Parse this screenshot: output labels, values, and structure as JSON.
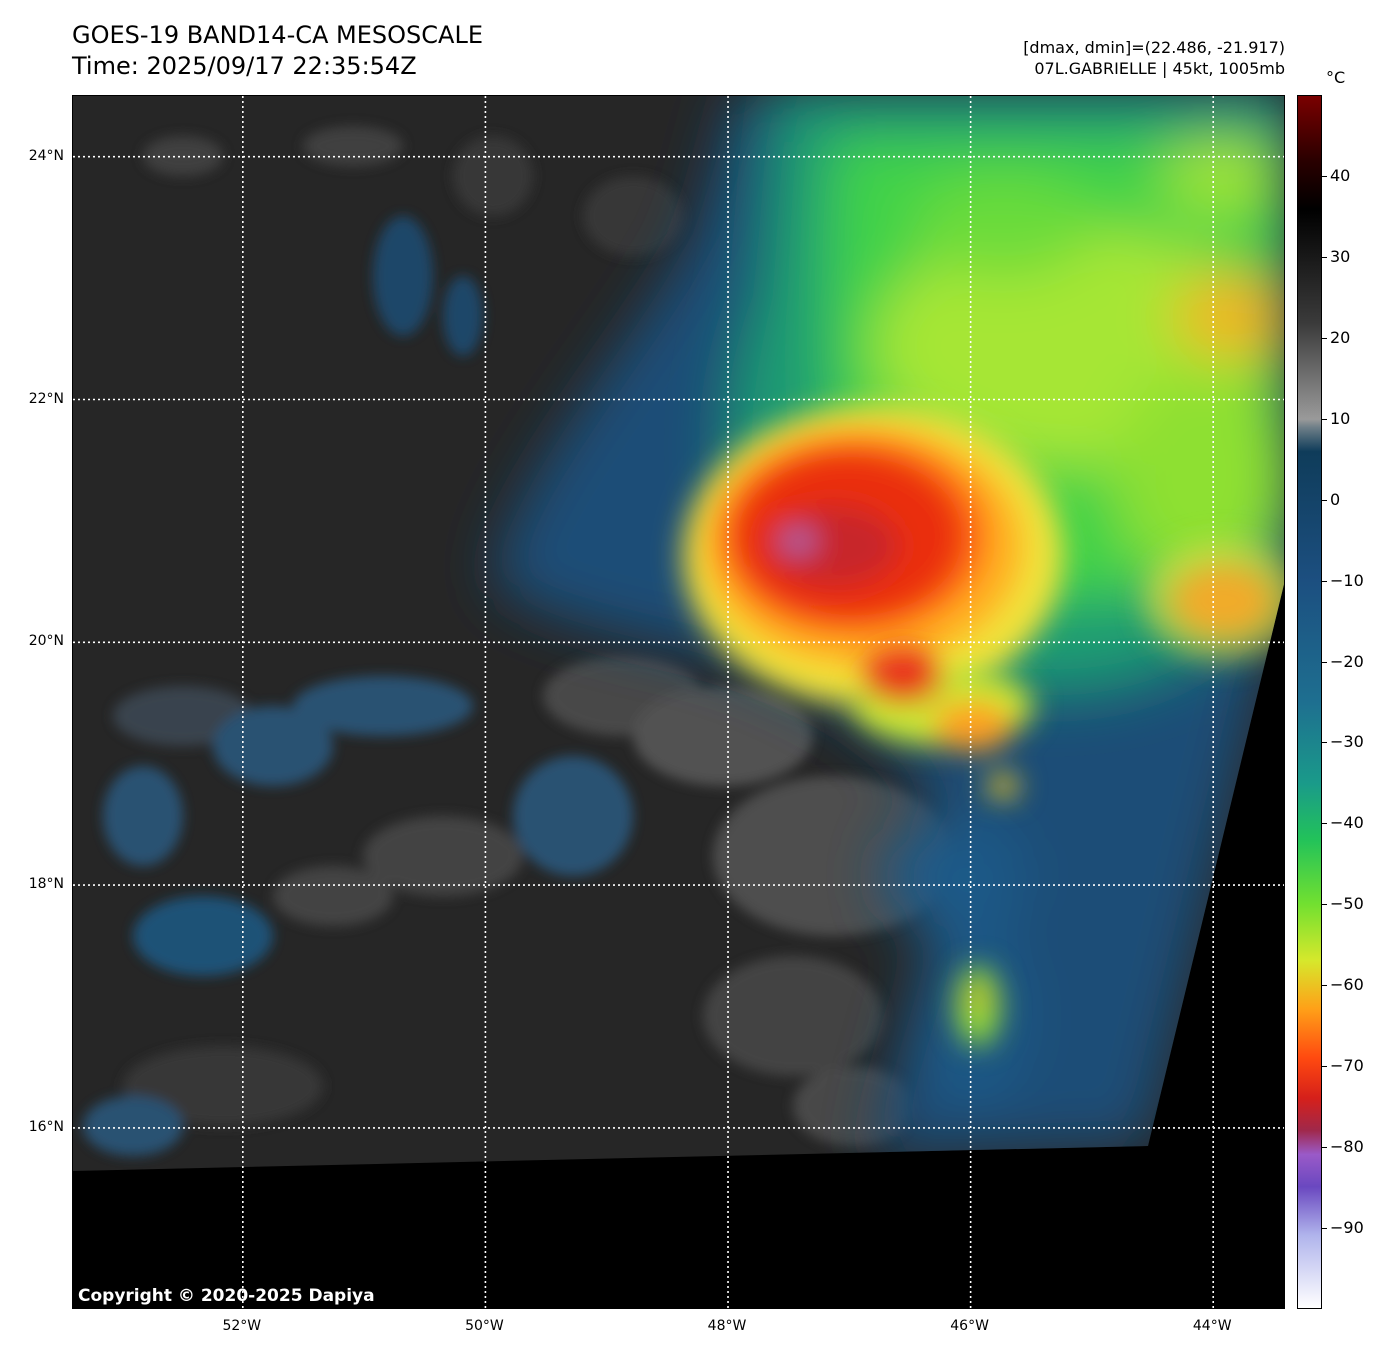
{
  "header": {
    "title": "GOES-19 BAND14-CA MESOSCALE",
    "time": "Time: 2025/09/17 22:35:54Z",
    "range": "[dmax, dmin]=(22.486, -21.917)",
    "storm": "07L.GABRIELLE | 45kt, 1005mb"
  },
  "map": {
    "copyright": "Copyright © 2020-2025 Dapiya",
    "lon_range": [
      -53.4,
      -43.4
    ],
    "lat_range": [
      14.5,
      24.5
    ],
    "grid_lines": "dotted white",
    "lat_labels": [
      {
        "value": 24,
        "label": "24°N"
      },
      {
        "value": 22,
        "label": "22°N"
      },
      {
        "value": 20,
        "label": "20°N"
      },
      {
        "value": 18,
        "label": "18°N"
      },
      {
        "value": 16,
        "label": "16°N"
      }
    ],
    "lon_labels": [
      {
        "value": -52,
        "label": "52°W"
      },
      {
        "value": -50,
        "label": "50°W"
      },
      {
        "value": -48,
        "label": "48°W"
      },
      {
        "value": -46,
        "label": "46°W"
      },
      {
        "value": -44,
        "label": "44°W"
      }
    ],
    "storm_center": {
      "lon": -47.0,
      "lat": 21.0
    },
    "colors": {
      "background_clear": "#262626",
      "low_cloud": "#1d4f78",
      "mid_cloud": "#2ad06a",
      "high_cloud": "#c8ef2a",
      "cold_top": "#ff8a12",
      "coldest_top": "#e2260e",
      "no_data": "#000000"
    }
  },
  "colorbar": {
    "unit": "°C",
    "range": [
      -100,
      50
    ],
    "ticks": [
      {
        "value": 40,
        "label": "40"
      },
      {
        "value": 30,
        "label": "30"
      },
      {
        "value": 20,
        "label": "20"
      },
      {
        "value": 10,
        "label": "10"
      },
      {
        "value": 0,
        "label": "0"
      },
      {
        "value": -10,
        "label": "−10"
      },
      {
        "value": -20,
        "label": "−20"
      },
      {
        "value": -30,
        "label": "−30"
      },
      {
        "value": -40,
        "label": "−40"
      },
      {
        "value": -50,
        "label": "−50"
      },
      {
        "value": -60,
        "label": "−60"
      },
      {
        "value": -70,
        "label": "−70"
      },
      {
        "value": -80,
        "label": "−80"
      },
      {
        "value": -90,
        "label": "−90"
      }
    ]
  }
}
